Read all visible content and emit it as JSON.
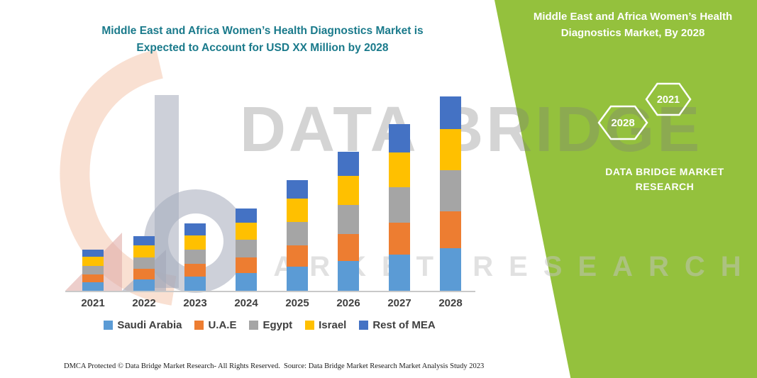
{
  "header": {
    "title_lines": [
      "Middle East and Africa Women’s Health Diagnostics Market is",
      "Expected to Account for USD XX Million by 2028"
    ],
    "title_color": "#1a7a8b"
  },
  "side_panel": {
    "background_color": "#94c13d",
    "title_lines": [
      "Middle East and Africa Women’s Health",
      "Diagnostics Market, By 2028"
    ],
    "hexagons": [
      "2028",
      "2021"
    ],
    "brand_lines": [
      "DATA BRIDGE MARKET",
      "RESEARCH"
    ]
  },
  "watermark": {
    "big_text": "DATA BRIDGE",
    "letters_text": "MARKET RESEARCH"
  },
  "chart_data": {
    "type": "bar",
    "stacked": true,
    "title": "Middle East and Africa Women’s Health Diagnostics Market is Expected to Account for USD XX Million by 2028",
    "xlabel": "",
    "ylabel": "",
    "y_axis_visible": false,
    "value_note": "values not labeled on chart (USD XX Million); heights estimated in relative units",
    "ylim": [
      0,
      300
    ],
    "legend_position": "bottom",
    "categories": [
      "2021",
      "2022",
      "2023",
      "2024",
      "2025",
      "2026",
      "2027",
      "2028"
    ],
    "series": [
      {
        "name": "Saudi Arabia",
        "color": "#5B9BD5",
        "values": [
          13,
          17,
          21,
          26,
          35,
          43,
          52,
          61
        ]
      },
      {
        "name": "U.A.E",
        "color": "#ED7D31",
        "values": [
          11,
          15,
          18,
          22,
          30,
          38,
          45,
          52
        ]
      },
      {
        "name": "Egypt",
        "color": "#A5A5A5",
        "values": [
          12,
          16,
          20,
          25,
          33,
          41,
          50,
          58
        ]
      },
      {
        "name": "Israel",
        "color": "#FFC000",
        "values": [
          13,
          17,
          20,
          24,
          33,
          41,
          49,
          58
        ]
      },
      {
        "name": "Rest of MEA",
        "color": "#4472C4",
        "values": [
          10,
          13,
          17,
          20,
          26,
          34,
          40,
          46
        ]
      }
    ]
  },
  "footer": {
    "left": "DMCA Protected © Data Bridge Market Research-  All Rights Reserved.",
    "right": "Source: Data Bridge Market Research  Market Analysis Study 2023"
  }
}
